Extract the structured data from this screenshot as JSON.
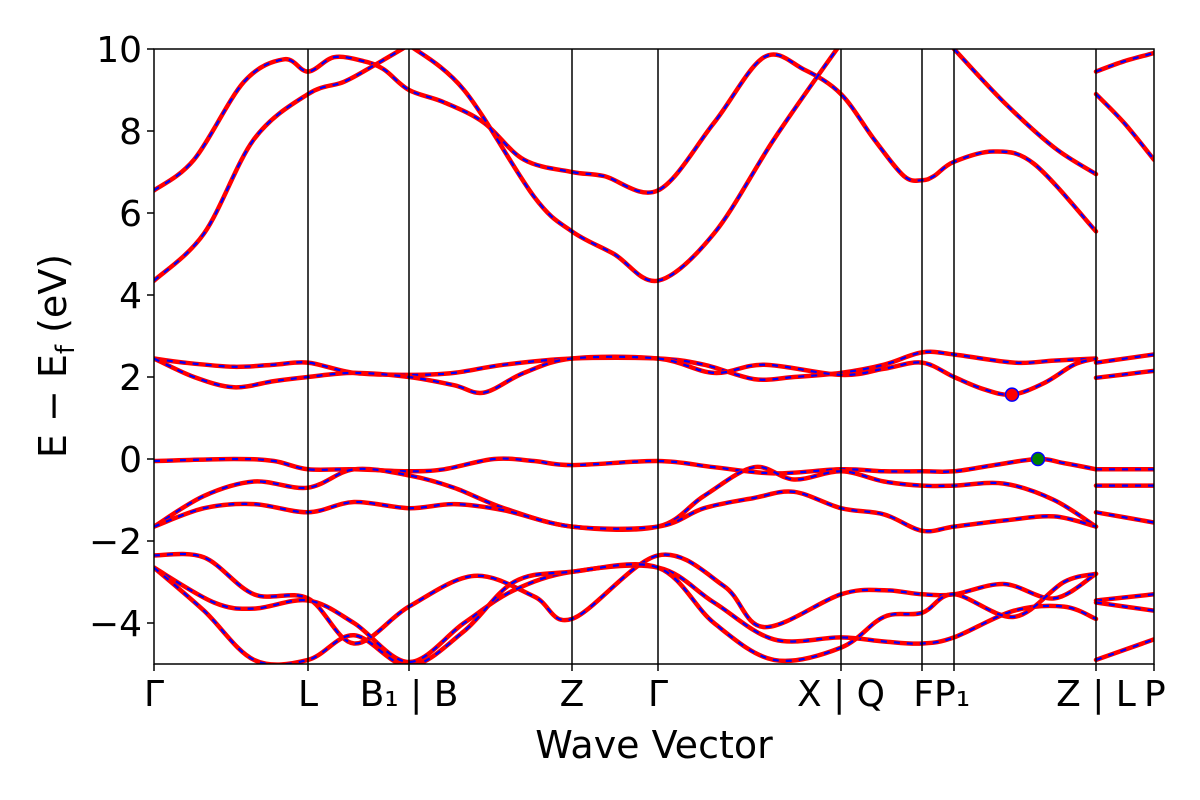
{
  "chart_data": {
    "type": "line",
    "xlabel": "Wave Vector",
    "ylabel": "E − E",
    "ylabel_sub": "f",
    "ylabel_unit": " (eV)",
    "ylim": [
      -5,
      10
    ],
    "xlim": [
      0,
      10
    ],
    "grid": false,
    "y_ticks": [
      {
        "value": 10,
        "label": "10"
      },
      {
        "value": 8,
        "label": "8"
      },
      {
        "value": 6,
        "label": "6"
      },
      {
        "value": 4,
        "label": "4"
      },
      {
        "value": 2,
        "label": "2"
      },
      {
        "value": 0,
        "label": "0"
      },
      {
        "value": -2,
        "label": "−2"
      },
      {
        "value": -4,
        "label": "−4"
      }
    ],
    "kpoints": [
      {
        "pos": 0.0,
        "label": "Γ"
      },
      {
        "pos": 1.54,
        "label": "L"
      },
      {
        "pos": 2.55,
        "label": "B₁ | B"
      },
      {
        "pos": 4.18,
        "label": "Z"
      },
      {
        "pos": 5.04,
        "label": "Γ"
      },
      {
        "pos": 6.87,
        "label": "X | Q"
      },
      {
        "pos": 7.68,
        "label": "F"
      },
      {
        "pos": 8.0,
        "label": "P₁"
      },
      {
        "pos": 9.42,
        "label": "Z | L"
      },
      {
        "pos": 10.0,
        "label": "P"
      }
    ],
    "series_colors": {
      "reference": "#ff0000",
      "overlay": "#0000ff"
    },
    "markers": [
      {
        "x": 8.58,
        "y": 1.57,
        "color": "#ff0000"
      },
      {
        "x": 8.84,
        "y": 0.0,
        "color": "#008000"
      }
    ],
    "series": [
      {
        "x": [
          0,
          0.4,
          0.9,
          1.3,
          1.54,
          1.8,
          2.1,
          2.3,
          2.55,
          2.9,
          3.3,
          3.7,
          4.18,
          4.5,
          5.04,
          5.6,
          6.1,
          6.5,
          6.87,
          7.2,
          7.5,
          7.68,
          7.8,
          8.0,
          8.4,
          8.8,
          9.42
        ],
        "y": [
          6.55,
          7.3,
          9.2,
          9.75,
          9.45,
          9.8,
          9.7,
          9.5,
          9.0,
          8.7,
          8.2,
          7.3,
          7.0,
          6.9,
          6.55,
          8.2,
          9.8,
          9.5,
          8.9,
          7.8,
          6.9,
          6.8,
          6.9,
          7.25,
          7.5,
          7.2,
          5.55
        ]
      },
      {
        "x": [
          0,
          0.5,
          1.0,
          1.54,
          1.9,
          2.2,
          2.55
        ],
        "y": [
          4.35,
          5.5,
          7.8,
          8.9,
          9.2,
          9.6,
          10.1
        ]
      },
      {
        "x": [
          2.55,
          3.1,
          3.8,
          4.18,
          4.6,
          5.04,
          5.6,
          6.2,
          6.8,
          6.87
        ],
        "y": [
          10.1,
          9.0,
          6.4,
          5.55,
          5.0,
          4.35,
          5.5,
          7.8,
          9.9,
          10.1
        ]
      },
      {
        "x": [
          8.0,
          8.5,
          9.0,
          9.42
        ],
        "y": [
          10.0,
          8.7,
          7.6,
          6.95
        ]
      },
      {
        "x": [
          9.42,
          9.7,
          10.0
        ],
        "y": [
          9.45,
          9.7,
          9.9
        ]
      },
      {
        "x": [
          9.42,
          9.7,
          10.0
        ],
        "y": [
          8.9,
          8.2,
          7.3
        ]
      },
      {
        "x": [
          0,
          0.3,
          0.8,
          1.2,
          1.54,
          2.0,
          2.55,
          3.0,
          3.5,
          4.18,
          5.04,
          5.5,
          6.0,
          6.4,
          6.87,
          7.3,
          7.68,
          8.0,
          8.6,
          9.0,
          9.42
        ],
        "y": [
          2.45,
          2.35,
          2.25,
          2.3,
          2.35,
          2.1,
          2.05,
          2.1,
          2.3,
          2.45,
          2.45,
          2.3,
          1.95,
          2.0,
          2.1,
          2.3,
          2.6,
          2.55,
          2.35,
          2.4,
          2.45
        ]
      },
      {
        "x": [
          0,
          0.4,
          0.8,
          1.2,
          1.54,
          2.0,
          2.55,
          3.0,
          3.3,
          3.7,
          4.18,
          5.04,
          5.6,
          6.1,
          6.87,
          7.3,
          7.68,
          8.0,
          8.3,
          8.58,
          8.9,
          9.2,
          9.42
        ],
        "y": [
          2.45,
          2.0,
          1.75,
          1.9,
          2.0,
          2.1,
          2.0,
          1.8,
          1.62,
          2.1,
          2.45,
          2.45,
          2.1,
          2.3,
          2.05,
          2.2,
          2.35,
          2.0,
          1.7,
          1.57,
          1.85,
          2.3,
          2.45
        ]
      },
      {
        "x": [
          9.42,
          10.0
        ],
        "y": [
          2.35,
          2.55
        ]
      },
      {
        "x": [
          9.42,
          10.0
        ],
        "y": [
          1.98,
          2.15
        ]
      },
      {
        "x": [
          0,
          0.8,
          1.2,
          1.54,
          2.0,
          2.55,
          2.9,
          3.4,
          3.8,
          4.18,
          5.04,
          5.6,
          6.2,
          6.87,
          7.3,
          7.68,
          8.0,
          8.4,
          8.84,
          9.1,
          9.42
        ],
        "y": [
          -0.05,
          0.0,
          -0.05,
          -0.25,
          -0.25,
          -0.3,
          -0.25,
          0.0,
          -0.05,
          -0.15,
          -0.05,
          -0.2,
          -0.35,
          -0.25,
          -0.3,
          -0.3,
          -0.3,
          -0.15,
          0.0,
          -0.1,
          -0.25
        ]
      },
      {
        "x": [
          9.42,
          10.0
        ],
        "y": [
          -0.25,
          -0.25
        ]
      },
      {
        "x": [
          0,
          0.5,
          1.0,
          1.54,
          2.0,
          2.55,
          3.0,
          3.5,
          4.18,
          5.04,
          5.5,
          6.0,
          6.4,
          6.87,
          7.3,
          7.68,
          8.0,
          8.5,
          9.0,
          9.42
        ],
        "y": [
          -1.65,
          -0.9,
          -0.55,
          -0.7,
          -0.25,
          -0.4,
          -0.7,
          -1.2,
          -1.65,
          -1.65,
          -0.9,
          -0.2,
          -0.5,
          -0.3,
          -0.55,
          -0.65,
          -0.65,
          -0.6,
          -1.0,
          -1.65
        ]
      },
      {
        "x": [
          0,
          0.5,
          1.0,
          1.54,
          2.0,
          2.55,
          3.0,
          3.5,
          4.18,
          5.04,
          5.5,
          6.0,
          6.4,
          6.87,
          7.3,
          7.68,
          8.0,
          8.5,
          9.0,
          9.42
        ],
        "y": [
          -1.65,
          -1.2,
          -1.1,
          -1.3,
          -1.05,
          -1.2,
          -1.1,
          -1.25,
          -1.65,
          -1.65,
          -1.2,
          -0.95,
          -0.8,
          -1.2,
          -1.35,
          -1.75,
          -1.65,
          -1.5,
          -1.4,
          -1.65
        ]
      },
      {
        "x": [
          9.42,
          10.0
        ],
        "y": [
          -0.65,
          -0.65
        ]
      },
      {
        "x": [
          9.42,
          10.0
        ],
        "y": [
          -1.3,
          -1.55
        ]
      },
      {
        "x": [
          0,
          0.5,
          1.0,
          1.54,
          2.0,
          2.55,
          3.2,
          3.8,
          4.18,
          5.04,
          5.7,
          6.1,
          6.87,
          7.3,
          7.68,
          8.0,
          8.5,
          9.0,
          9.42
        ],
        "y": [
          -2.35,
          -2.4,
          -3.3,
          -3.4,
          -4.5,
          -3.6,
          -2.85,
          -3.35,
          -3.9,
          -2.35,
          -3.1,
          -4.1,
          -3.3,
          -3.2,
          -3.3,
          -3.3,
          -3.05,
          -3.4,
          -2.8
        ]
      },
      {
        "x": [
          0,
          0.6,
          1.0,
          1.54,
          2.0,
          2.55,
          3.1,
          3.6,
          4.18,
          5.04,
          5.6,
          6.2,
          6.87,
          7.3,
          7.68,
          8.0,
          8.6,
          9.1,
          9.42
        ],
        "y": [
          -2.65,
          -3.5,
          -3.65,
          -3.45,
          -4.0,
          -4.95,
          -4.0,
          -3.2,
          -2.75,
          -2.65,
          -3.5,
          -4.4,
          -4.35,
          -4.45,
          -4.5,
          -4.35,
          -3.7,
          -3.6,
          -3.9
        ]
      },
      {
        "x": [
          0,
          0.5,
          1.0,
          1.54,
          2.0,
          2.55,
          3.1,
          3.6,
          4.18,
          5.04,
          5.6,
          6.2,
          6.87,
          7.3,
          7.68,
          8.0,
          8.6,
          9.1,
          9.42
        ],
        "y": [
          -2.65,
          -3.7,
          -4.9,
          -4.9,
          -4.3,
          -5.05,
          -4.2,
          -3.0,
          -2.75,
          -2.65,
          -4.0,
          -4.9,
          -4.6,
          -3.85,
          -3.75,
          -3.3,
          -3.85,
          -3.0,
          -2.8
        ]
      },
      {
        "x": [
          9.42,
          10.0
        ],
        "y": [
          -3.45,
          -3.3
        ]
      },
      {
        "x": [
          9.42,
          10.0
        ],
        "y": [
          -3.5,
          -3.7
        ]
      },
      {
        "x": [
          9.42,
          10.0
        ],
        "y": [
          -4.9,
          -4.4
        ]
      }
    ]
  }
}
